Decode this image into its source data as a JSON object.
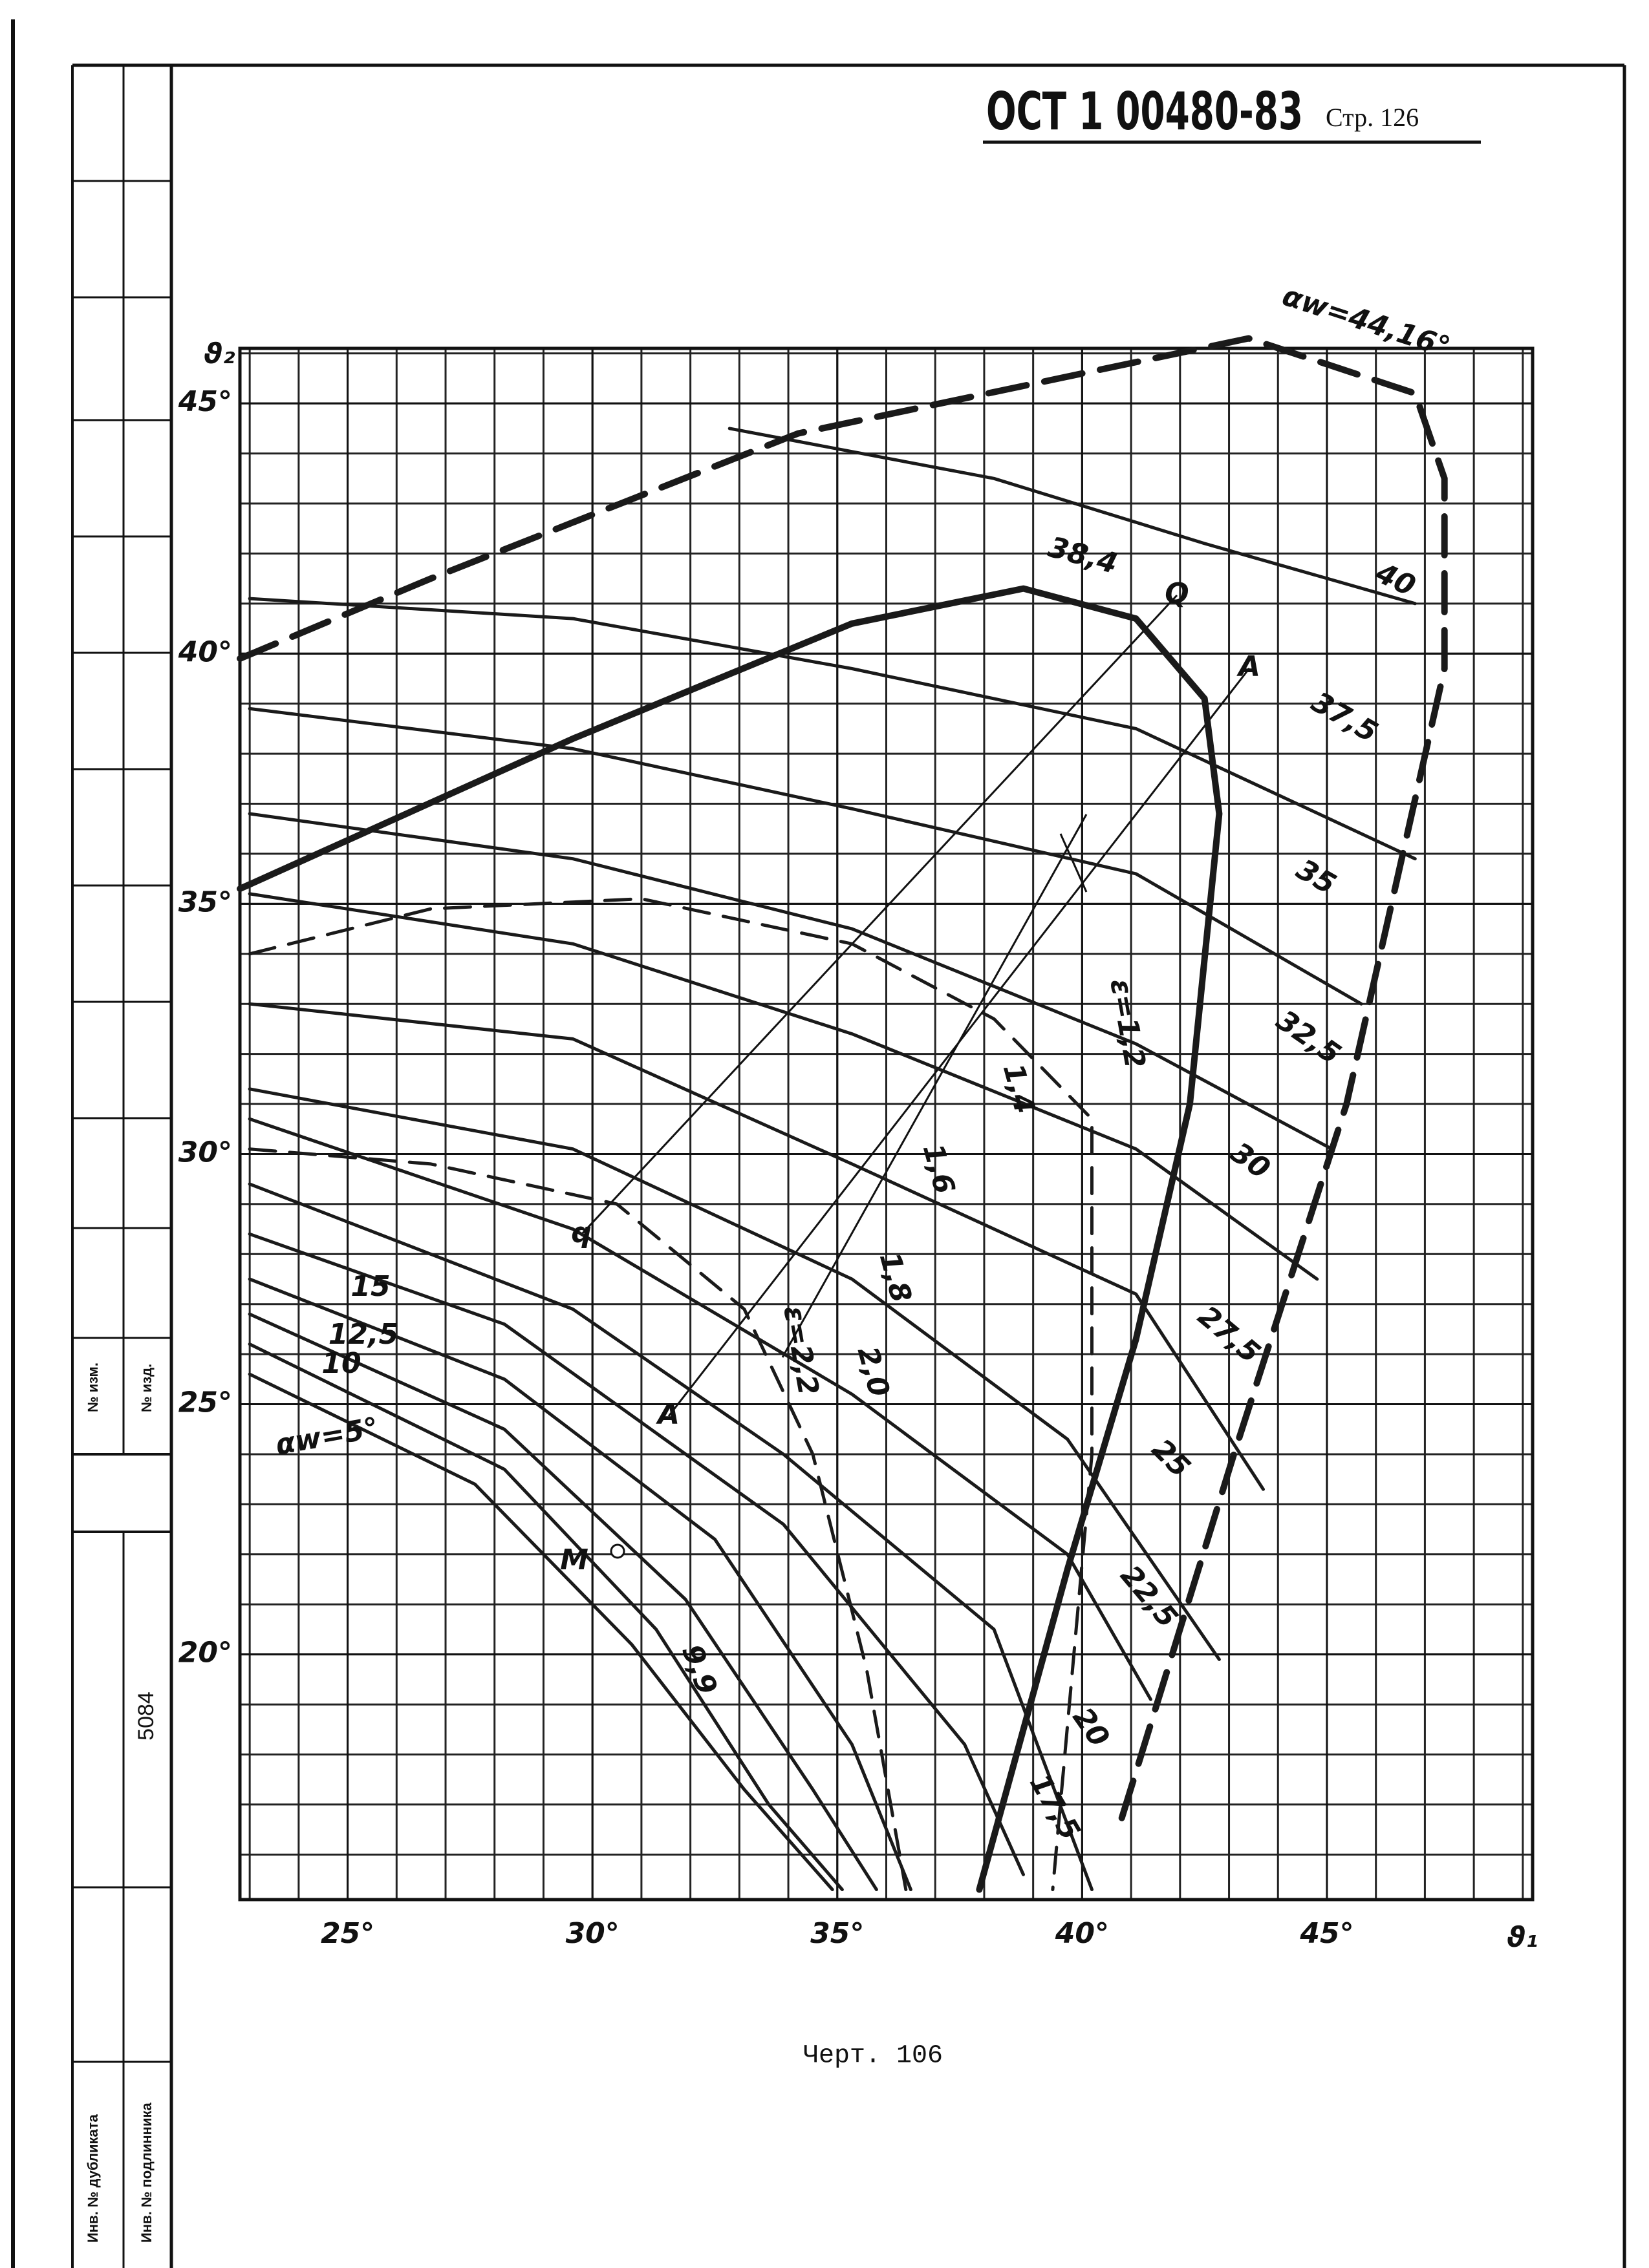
{
  "header": {
    "code": "ОСТ 1 00480-83",
    "page": "Стр. 126"
  },
  "caption": "Черт. 106",
  "side": {
    "change_no": "№ изм.",
    "edition_no": "№ изд.",
    "number": "5084",
    "duplicate": "Инв. № дубликата",
    "original": "Инв. № подлинника"
  },
  "chart_data": {
    "type": "line",
    "x_label": "ϑ₁",
    "y_label": "ϑ₂",
    "xlim": [
      22.8,
      49.2
    ],
    "ylim": [
      15.1,
      46.1
    ],
    "xticks": [
      {
        "value": 25,
        "label": "25°"
      },
      {
        "value": 30,
        "label": "30°"
      },
      {
        "value": 35,
        "label": "35°"
      },
      {
        "value": 40,
        "label": "40°"
      },
      {
        "value": 45,
        "label": "45°"
      }
    ],
    "yticks": [
      {
        "value": 20,
        "label": "20°"
      },
      {
        "value": 25,
        "label": "25°"
      },
      {
        "value": 30,
        "label": "30°"
      },
      {
        "value": 35,
        "label": "35°"
      },
      {
        "value": 40,
        "label": "40°"
      },
      {
        "value": 45,
        "label": "45°"
      }
    ],
    "grid": true,
    "series": [
      {
        "name": "αw=44,16°",
        "color": "#1a1a1a",
        "style": "bold-dash",
        "x": [
          22.8,
          26.7,
          34.2,
          43.4,
          46.8,
          47.4,
          47.4,
          45.4,
          43.1,
          40.8
        ],
        "values": [
          39.9,
          41.5,
          44.4,
          46.3,
          45.2,
          43.5,
          39.7,
          31.0,
          24.0,
          16.7
        ]
      },
      {
        "name": "40",
        "color": "#1a1a1a",
        "style": "solid",
        "x": [
          32.8,
          38.2,
          42.5,
          46.8
        ],
        "values": [
          44.5,
          43.5,
          42.2,
          41.0
        ]
      },
      {
        "name": "38,4",
        "color": "#1a1a1a",
        "style": "bold",
        "x": [
          22.8,
          29.6,
          35.3,
          38.8,
          41.1,
          42.5,
          42.8,
          42.2,
          41.1,
          39.7,
          37.9
        ],
        "values": [
          35.3,
          38.3,
          40.6,
          41.3,
          40.7,
          39.1,
          36.8,
          31.0,
          26.3,
          21.7,
          15.3
        ]
      },
      {
        "name": "37,5",
        "color": "#1a1a1a",
        "style": "solid",
        "x": [
          23.0,
          29.6,
          35.3,
          41.1,
          46.8
        ],
        "values": [
          41.1,
          40.7,
          39.7,
          38.5,
          35.9
        ]
      },
      {
        "name": "35",
        "color": "#1a1a1a",
        "style": "solid",
        "x": [
          23.0,
          29.6,
          35.3,
          41.1,
          45.7
        ],
        "values": [
          38.9,
          38.1,
          36.9,
          35.6,
          33.0
        ]
      },
      {
        "name": "32,5",
        "color": "#1a1a1a",
        "style": "solid",
        "x": [
          23.0,
          29.6,
          35.3,
          41.1,
          45.1
        ],
        "values": [
          36.8,
          35.9,
          34.5,
          32.2,
          30.1
        ]
      },
      {
        "name": "30",
        "color": "#1a1a1a",
        "style": "solid",
        "x": [
          23.0,
          29.6,
          35.3,
          41.1,
          44.8
        ],
        "values": [
          35.2,
          34.2,
          32.4,
          30.1,
          27.5
        ]
      },
      {
        "name": "27,5",
        "color": "#1a1a1a",
        "style": "solid",
        "x": [
          23.0,
          29.6,
          35.3,
          41.1,
          43.7
        ],
        "values": [
          33.0,
          32.3,
          29.8,
          27.2,
          23.3
        ]
      },
      {
        "name": "25",
        "color": "#1a1a1a",
        "style": "solid",
        "x": [
          23.0,
          29.6,
          35.3,
          39.7,
          42.8
        ],
        "values": [
          31.3,
          30.1,
          27.5,
          24.3,
          19.9
        ]
      },
      {
        "name": "22,5",
        "color": "#1a1a1a",
        "style": "solid",
        "x": [
          23.0,
          29.6,
          35.3,
          39.7,
          41.4
        ],
        "values": [
          30.7,
          28.5,
          25.2,
          22.0,
          19.1
        ]
      },
      {
        "name": "20",
        "color": "#1a1a1a",
        "style": "solid",
        "x": [
          23.0,
          29.6,
          33.9,
          38.2,
          40.2
        ],
        "values": [
          29.4,
          26.9,
          24.0,
          20.5,
          15.3
        ]
      },
      {
        "name": "17,5",
        "color": "#1a1a1a",
        "style": "solid",
        "x": [
          23.0,
          28.2,
          33.9,
          37.6,
          38.8
        ],
        "values": [
          28.4,
          26.6,
          22.6,
          18.2,
          15.6
        ]
      },
      {
        "name": "15",
        "color": "#1a1a1a",
        "style": "solid",
        "x": [
          23.0,
          28.2,
          32.5,
          35.3,
          36.5
        ],
        "values": [
          27.5,
          25.5,
          22.3,
          18.2,
          15.3
        ]
      },
      {
        "name": "12,5",
        "color": "#1a1a1a",
        "style": "solid",
        "x": [
          23.0,
          28.2,
          31.9,
          34.5,
          35.8
        ],
        "values": [
          26.8,
          24.5,
          21.1,
          17.3,
          15.3
        ]
      },
      {
        "name": "10",
        "color": "#1a1a1a",
        "style": "solid",
        "x": [
          23.0,
          28.2,
          31.3,
          33.6,
          35.1
        ],
        "values": [
          26.2,
          23.7,
          20.5,
          17.0,
          15.3
        ]
      },
      {
        "name": "αw=5°",
        "color": "#1a1a1a",
        "style": "solid",
        "x": [
          23.0,
          27.6,
          30.8,
          33.1,
          34.9
        ],
        "values": [
          25.6,
          23.4,
          20.2,
          17.3,
          15.3
        ]
      },
      {
        "name": "ε=1,2",
        "color": "#1a1a1a",
        "style": "dash",
        "x": [
          23.0,
          26.7,
          31.0,
          35.3,
          38.2,
          40.2,
          40.2,
          39.4
        ],
        "values": [
          34.0,
          34.9,
          35.1,
          34.2,
          32.7,
          30.7,
          24.0,
          15.3
        ]
      },
      {
        "name": "ε=2,2",
        "color": "#1a1a1a",
        "style": "dash",
        "x": [
          23.0,
          26.7,
          30.5,
          33.1,
          34.5,
          35.6,
          36.4
        ],
        "values": [
          30.1,
          29.8,
          29.0,
          26.9,
          24.0,
          19.7,
          15.3
        ]
      }
    ],
    "annotations": [
      "Q",
      "A",
      "q",
      "A",
      "M",
      "9,9",
      "1,4",
      "1,6",
      "1,8",
      "2,0"
    ]
  }
}
